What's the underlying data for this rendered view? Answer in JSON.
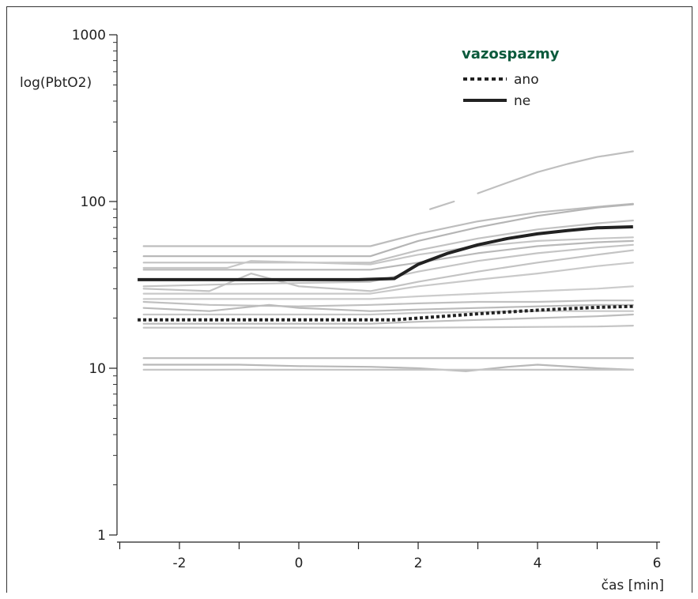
{
  "chart_data": {
    "type": "line",
    "ylabel": "log(PbtO2)",
    "xlabel": "čas [min]",
    "yscale": "log",
    "ylim": [
      1,
      1000
    ],
    "xlim": [
      -3,
      6.1
    ],
    "x_ticks": [
      -2,
      0,
      2,
      4,
      6
    ],
    "y_ticks": [
      1,
      10,
      100,
      1000
    ],
    "legend": {
      "title": "vazospazmy",
      "placement": "top-right",
      "entries": [
        {
          "label": "ano",
          "style": "dotted"
        },
        {
          "label": "ne",
          "style": "solid"
        }
      ]
    },
    "series": [
      {
        "name": "ano",
        "style": "dotted",
        "color": "#222222",
        "x": [
          -2.7,
          -2,
          -1,
          0,
          1,
          1.6,
          2,
          3,
          4,
          5,
          5.6
        ],
        "y": [
          19.5,
          19.5,
          19.5,
          19.5,
          19.5,
          19.5,
          20,
          21.2,
          22.3,
          23.2,
          23.5
        ]
      },
      {
        "name": "ne",
        "style": "solid",
        "color": "#222222",
        "x": [
          -2.7,
          -2,
          -1,
          0,
          1,
          1.6,
          2,
          2.5,
          3,
          3.5,
          4,
          4.5,
          5,
          5.6
        ],
        "y": [
          34,
          34,
          34,
          34,
          34,
          34.5,
          42,
          49,
          55,
          60,
          64,
          67,
          69.5,
          70.5
        ]
      }
    ],
    "individual_series": [
      {
        "color": "#bfbfbf",
        "x": [
          2.2,
          2.6
        ],
        "y": [
          90,
          100
        ]
      },
      {
        "color": "#bfbfbf",
        "x": [
          3,
          3.5,
          4,
          4.5,
          5,
          5.6
        ],
        "y": [
          112,
          130,
          150,
          168,
          185,
          200
        ]
      },
      {
        "color": "#bdbdbd",
        "x": [
          -2.6,
          -1,
          1.2,
          2,
          3,
          4,
          5,
          5.6
        ],
        "y": [
          54,
          54,
          54,
          64,
          76,
          86,
          93,
          97
        ]
      },
      {
        "color": "#b5b5b5",
        "x": [
          -2.6,
          -1,
          1.2,
          2,
          3,
          4,
          5,
          5.6
        ],
        "y": [
          47,
          47,
          47,
          58,
          70,
          82,
          92,
          96
        ]
      },
      {
        "color": "#c2c2c2",
        "x": [
          -2.6,
          -1,
          1.2,
          2,
          3,
          4,
          5,
          5.6
        ],
        "y": [
          43,
          43,
          43,
          51,
          60,
          68,
          74,
          77
        ]
      },
      {
        "color": "#c7c7c7",
        "x": [
          -2.6,
          -1.2,
          -0.8,
          1.2,
          2,
          3,
          4,
          5,
          5.6
        ],
        "y": [
          40,
          40,
          44,
          42,
          48,
          54,
          58,
          60,
          61
        ]
      },
      {
        "color": "#b9b9b9",
        "x": [
          -2.6,
          -1,
          1.2,
          2,
          3,
          4,
          5,
          5.6
        ],
        "y": [
          39,
          39,
          39,
          43,
          49,
          54,
          57,
          58
        ]
      },
      {
        "color": "#c5c5c5",
        "x": [
          -2.6,
          -1,
          1.2,
          2,
          3,
          4,
          5,
          5.6
        ],
        "y": [
          31,
          32,
          33,
          38,
          44,
          49,
          53,
          55
        ]
      },
      {
        "color": "#c3c3c3",
        "x": [
          -2.6,
          -1.5,
          -0.8,
          0,
          1.2,
          2,
          3,
          4,
          5,
          5.6
        ],
        "y": [
          30,
          29,
          37,
          31,
          29,
          33,
          38,
          43,
          48,
          51
        ]
      },
      {
        "color": "#c9c9c9",
        "x": [
          -2.6,
          -1,
          1.2,
          2,
          3,
          4,
          5,
          5.6
        ],
        "y": [
          28,
          28,
          28,
          31,
          34,
          37,
          41,
          43
        ]
      },
      {
        "color": "#cccccc",
        "x": [
          -2.6,
          -1,
          1.2,
          2,
          3,
          4,
          5,
          5.6
        ],
        "y": [
          26,
          26,
          26,
          27,
          28,
          29,
          30,
          31
        ]
      },
      {
        "color": "#c0c0c0",
        "x": [
          -2.6,
          -1.5,
          0,
          1.2,
          2,
          3,
          4,
          5,
          5.6
        ],
        "y": [
          25,
          24,
          23.5,
          24,
          24.5,
          25,
          25,
          25.5,
          25.5
        ]
      },
      {
        "color": "#bbbbbb",
        "x": [
          -2.6,
          -1.5,
          -0.5,
          0,
          1.2,
          2,
          3,
          4,
          5,
          5.6
        ],
        "y": [
          23,
          22,
          24,
          23,
          22,
          22.5,
          23,
          23.5,
          24,
          24
        ]
      },
      {
        "color": "#c8c8c8",
        "x": [
          -2.6,
          -1,
          1.2,
          2,
          3,
          4,
          5,
          5.6
        ],
        "y": [
          21,
          21,
          21,
          21.5,
          21.8,
          22,
          22,
          22
        ]
      },
      {
        "color": "#bdbdbd",
        "x": [
          -2.6,
          -1,
          1.2,
          2,
          3,
          4,
          5,
          5.6
        ],
        "y": [
          18.5,
          18.5,
          18.5,
          19,
          19.5,
          20,
          20.5,
          21
        ]
      },
      {
        "color": "#c4c4c4",
        "x": [
          -2.6,
          -1,
          1.2,
          2,
          3,
          4,
          5,
          5.6
        ],
        "y": [
          17.5,
          17.5,
          17.5,
          17.5,
          17.6,
          17.7,
          17.8,
          18
        ]
      },
      {
        "color": "#bcbcbc",
        "x": [
          -2.6,
          -1,
          1.2,
          2,
          3,
          4,
          5,
          5.6
        ],
        "y": [
          11.5,
          11.5,
          11.5,
          11.5,
          11.5,
          11.5,
          11.5,
          11.5
        ]
      },
      {
        "color": "#b8b8b8",
        "x": [
          -2.6,
          -1,
          0,
          1.2,
          2,
          2.8,
          3.5,
          4,
          5,
          5.6
        ],
        "y": [
          10.5,
          10.5,
          10.3,
          10.2,
          10,
          9.6,
          10.2,
          10.5,
          10,
          9.8
        ]
      },
      {
        "color": "#c6c6c6",
        "x": [
          -2.6,
          -1,
          1.2,
          2,
          3,
          4,
          5,
          5.6
        ],
        "y": [
          9.8,
          9.8,
          9.8,
          9.8,
          9.8,
          9.8,
          9.8,
          9.8
        ]
      }
    ]
  }
}
